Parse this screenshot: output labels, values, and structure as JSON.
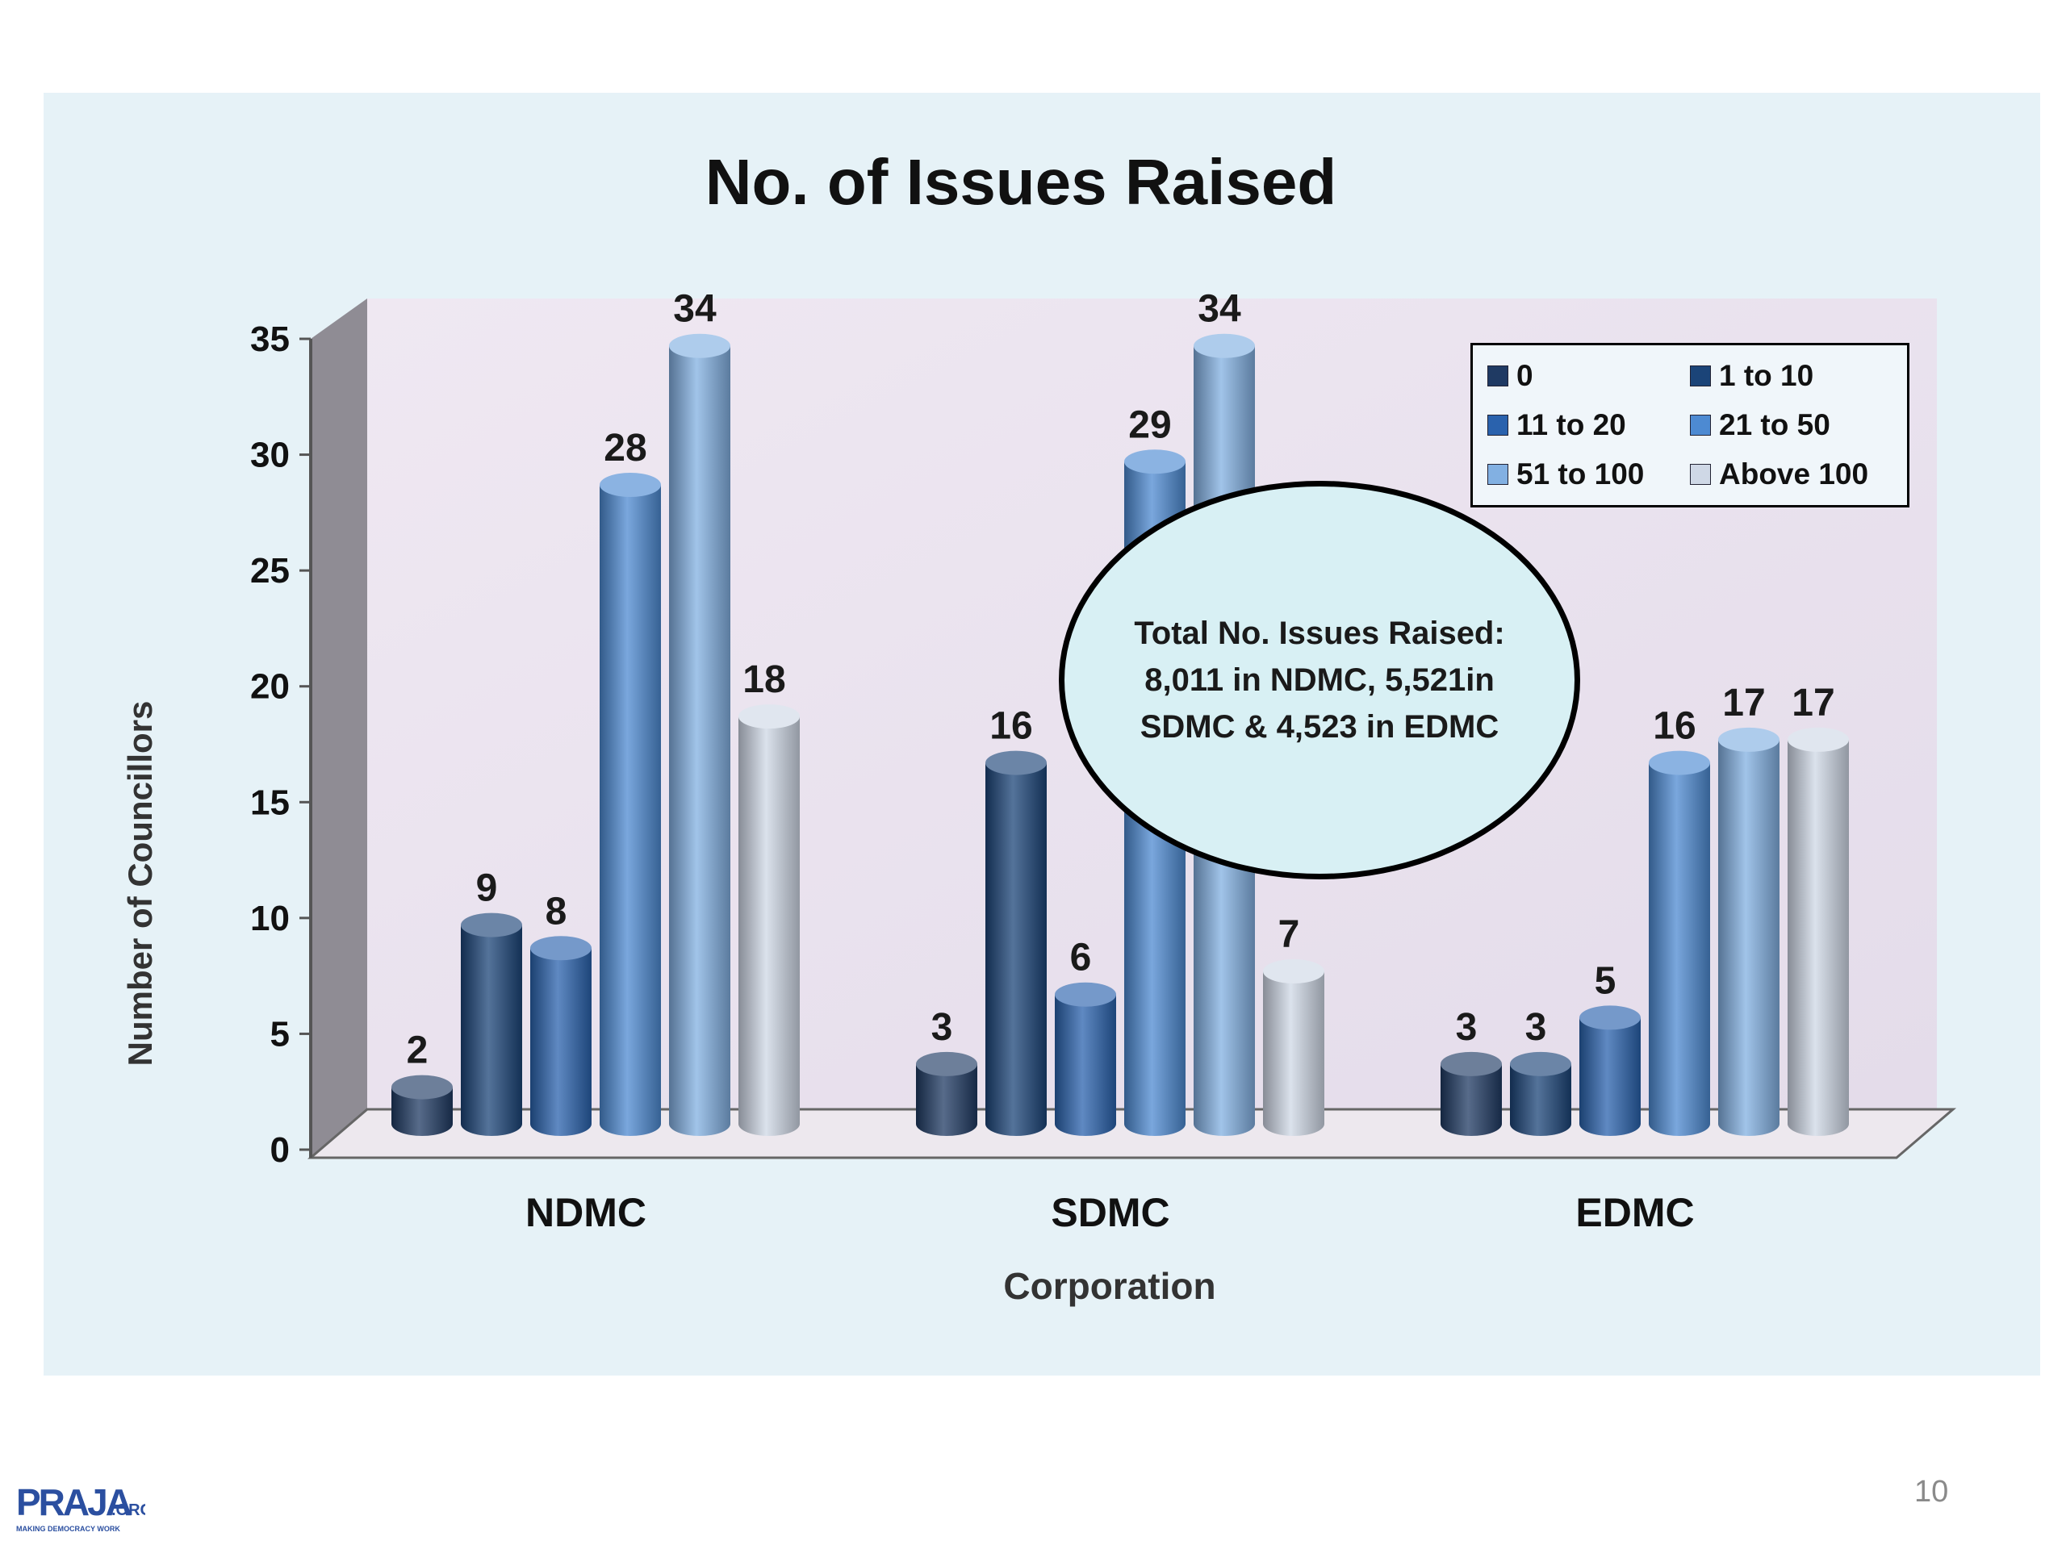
{
  "chart_data": {
    "type": "bar",
    "title": "No. of Issues Raised",
    "xlabel": "Corporation",
    "ylabel": "Number of Councillors",
    "ylim": [
      0,
      35
    ],
    "yticks": [
      0,
      5,
      10,
      15,
      20,
      25,
      30,
      35
    ],
    "categories": [
      "NDMC",
      "SDMC",
      "EDMC"
    ],
    "series": [
      {
        "name": "0",
        "values": [
          2,
          3,
          3
        ],
        "color": "#1f3a63"
      },
      {
        "name": "1 to 10",
        "values": [
          9,
          16,
          3
        ],
        "color": "#1b4478"
      },
      {
        "name": "11 to 20",
        "values": [
          8,
          6,
          5
        ],
        "color": "#2a62ad"
      },
      {
        "name": "21 to 50",
        "values": [
          28,
          29,
          16
        ],
        "color": "#4d8ad2"
      },
      {
        "name": "51 to 100",
        "values": [
          34,
          34,
          17
        ],
        "color": "#82b0e2"
      },
      {
        "name": "Above 100",
        "values": [
          18,
          7,
          17
        ],
        "color": "#cfd8e6"
      }
    ],
    "legend_position": "top-right",
    "annotation": "Total No. Issues Raised: 8,011 in NDMC, 5,521in SDMC & 4,523 in EDMC"
  },
  "colors": {
    "panel_background": "#e6f2f7",
    "plot_background": "#ece4ef",
    "annotation_fill": "#d8f0f4"
  },
  "page_number": "10",
  "logo": {
    "name": "praja-logo",
    "text": "PRAJA.ORG",
    "tagline": "MAKING DEMOCRACY WORK"
  }
}
